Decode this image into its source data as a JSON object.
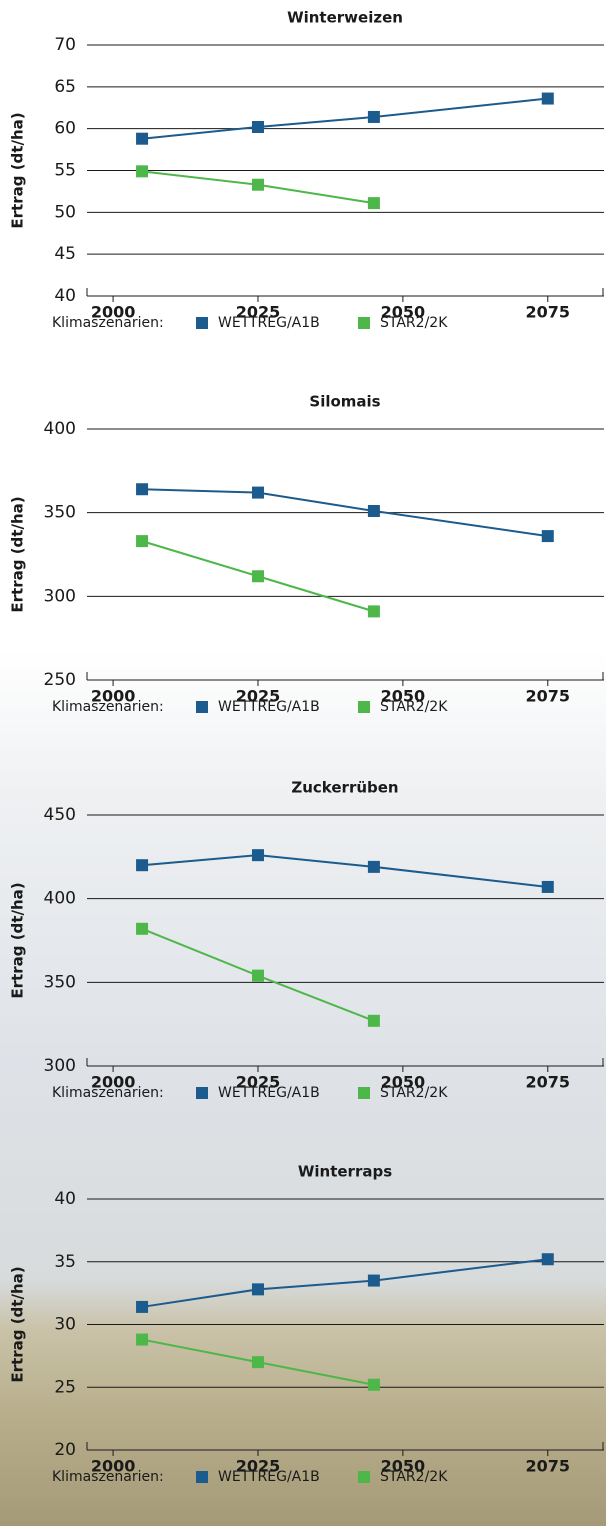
{
  "chart_data": [
    {
      "type": "line",
      "title": "Winterweizen",
      "y_label": "Ertrag (dt/ha)",
      "x": [
        2005,
        2025,
        2045,
        2075
      ],
      "series": [
        {
          "name": "WETTREG/A1B",
          "color": "#1b5b8e",
          "values": [
            58.8,
            60.2,
            61.4,
            63.6
          ]
        },
        {
          "name": "STAR2/2K",
          "color": "#4db74a",
          "values": [
            54.9,
            53.3,
            51.1,
            null
          ]
        }
      ],
      "xlim": [
        1995.5,
        2084.7
      ],
      "xticks": [
        2000,
        2025,
        2050,
        2075
      ],
      "ylim": [
        40,
        70
      ],
      "yticks": [
        40,
        45,
        50,
        55,
        60,
        65,
        70
      ],
      "legend_title": "Klimaszenarien:",
      "grid": true
    },
    {
      "type": "line",
      "title": "Silomais",
      "y_label": "Ertrag (dt/ha)",
      "x": [
        2005,
        2025,
        2045,
        2075
      ],
      "series": [
        {
          "name": "WETTREG/A1B",
          "color": "#1b5b8e",
          "values": [
            364,
            362,
            351,
            336
          ]
        },
        {
          "name": "STAR2/2K",
          "color": "#4db74a",
          "values": [
            333,
            312,
            291,
            null
          ]
        }
      ],
      "xlim": [
        1995.5,
        2084.7
      ],
      "xticks": [
        2000,
        2025,
        2050,
        2075
      ],
      "ylim": [
        250,
        400
      ],
      "yticks": [
        250,
        300,
        350,
        400
      ],
      "legend_title": "Klimaszenarien:",
      "grid": true
    },
    {
      "type": "line",
      "title": "Zuckerrüben",
      "y_label": "Ertrag (dt/ha)",
      "x": [
        2005,
        2025,
        2045,
        2075
      ],
      "series": [
        {
          "name": "WETTREG/A1B",
          "color": "#1b5b8e",
          "values": [
            420,
            426,
            419,
            407
          ]
        },
        {
          "name": "STAR2/2K",
          "color": "#4db74a",
          "values": [
            382,
            354,
            327,
            null
          ]
        }
      ],
      "xlim": [
        1995.5,
        2084.7
      ],
      "xticks": [
        2000,
        2025,
        2050,
        2075
      ],
      "ylim": [
        300,
        450
      ],
      "yticks": [
        300,
        350,
        400,
        450
      ],
      "legend_title": "Klimaszenarien:",
      "grid": true
    },
    {
      "type": "line",
      "title": "Winterraps",
      "y_label": "Ertrag (dt/ha)",
      "x": [
        2005,
        2025,
        2045,
        2075
      ],
      "series": [
        {
          "name": "WETTREG/A1B",
          "color": "#1b5b8e",
          "values": [
            31.4,
            32.8,
            33.5,
            35.2
          ]
        },
        {
          "name": "STAR2/2K",
          "color": "#4db74a",
          "values": [
            28.8,
            27.0,
            25.2,
            null
          ]
        }
      ],
      "xlim": [
        1995.5,
        2084.7
      ],
      "xticks": [
        2000,
        2025,
        2050,
        2075
      ],
      "ylim": [
        20,
        40
      ],
      "yticks": [
        20,
        25,
        30,
        35,
        40
      ],
      "legend_title": "Klimaszenarien:",
      "grid": true
    }
  ]
}
